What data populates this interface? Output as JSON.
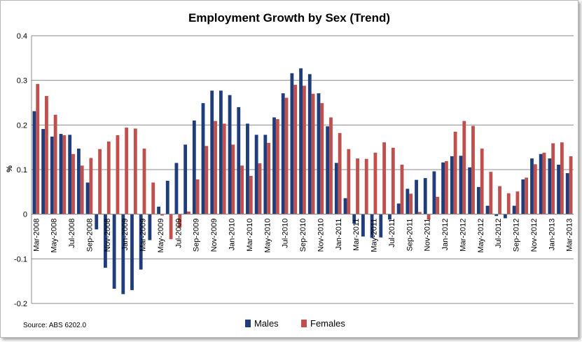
{
  "chart_data": {
    "type": "bar",
    "title": "Employment Growth by Sex (Trend)",
    "ylabel": "%",
    "xlabel": "",
    "ylim": [
      -0.2,
      0.4
    ],
    "yticks": [
      "0.4",
      "0.3",
      "0.2",
      "0.1",
      "0",
      "-0.1",
      "-0.2"
    ],
    "ytick_values": [
      0.4,
      0.3,
      0.2,
      0.1,
      0,
      -0.1,
      -0.2
    ],
    "grid": "horizontal",
    "legend_position": "bottom",
    "source": "Source: ABS 6202.0",
    "categories": [
      "Mar-2008",
      "Apr-2008",
      "May-2008",
      "Jun-2008",
      "Jul-2008",
      "Aug-2008",
      "Sep-2008",
      "Oct-2008",
      "Nov-2008",
      "Dec-2008",
      "Jan-2009",
      "Feb-2009",
      "Mar-2009",
      "Apr-2009",
      "May-2009",
      "Jun-2009",
      "Jul-2009",
      "Aug-2009",
      "Sep-2009",
      "Oct-2009",
      "Nov-2009",
      "Dec-2009",
      "Jan-2010",
      "Feb-2010",
      "Mar-2010",
      "Apr-2010",
      "May-2010",
      "Jun-2010",
      "Jul-2010",
      "Aug-2010",
      "Sep-2010",
      "Oct-2010",
      "Nov-2010",
      "Dec-2010",
      "Jan-2011",
      "Feb-2011",
      "Mar-2011",
      "Apr-2011",
      "May-2011",
      "Jun-2011",
      "Jul-2011",
      "Aug-2011",
      "Sep-2011",
      "Oct-2011",
      "Nov-2011",
      "Dec-2011",
      "Jan-2012",
      "Feb-2012",
      "Mar-2012",
      "Apr-2012",
      "May-2012",
      "Jun-2012",
      "Jul-2012",
      "Aug-2012",
      "Sep-2012",
      "Oct-2012",
      "Nov-2012",
      "Dec-2012",
      "Jan-2013",
      "Feb-2013",
      "Mar-2013"
    ],
    "tick_labels": [
      "Mar-2008",
      "May-2008",
      "Jul-2008",
      "Sep-2008",
      "Nov-2008",
      "Jan-2009",
      "Mar-2009",
      "May-2009",
      "Jul-2009",
      "Sep-2009",
      "Nov-2009",
      "Jan-2010",
      "Mar-2010",
      "May-2010",
      "Jul-2010",
      "Sep-2010",
      "Nov-2010",
      "Jan-2011",
      "Mar-2011",
      "May-2011",
      "Jul-2011",
      "Sep-2011",
      "Nov-2011",
      "Jan-2012",
      "Mar-2012",
      "May-2012",
      "Jul-2012",
      "Sep-2012",
      "Nov-2012",
      "Jan-2013",
      "Mar-2013"
    ],
    "series": [
      {
        "name": "Males",
        "color": "#1f3d7a",
        "values": [
          0.231,
          0.191,
          0.174,
          0.18,
          0.178,
          0.147,
          0.071,
          -0.034,
          -0.12,
          -0.167,
          -0.179,
          -0.17,
          -0.124,
          -0.058,
          0.017,
          0.075,
          0.115,
          0.156,
          0.21,
          0.249,
          0.277,
          0.277,
          0.267,
          0.24,
          0.203,
          0.178,
          0.178,
          0.217,
          0.271,
          0.316,
          0.327,
          0.314,
          0.271,
          0.197,
          0.115,
          0.036,
          -0.021,
          -0.05,
          -0.053,
          -0.052,
          -0.012,
          0.024,
          0.057,
          0.077,
          0.081,
          0.096,
          0.116,
          0.13,
          0.131,
          0.105,
          0.061,
          0.019,
          -0.004,
          -0.009,
          0.019,
          0.078,
          0.125,
          0.135,
          0.125,
          0.111,
          0.092
        ]
      },
      {
        "name": "Females",
        "color": "#c0504d",
        "values": [
          0.292,
          0.265,
          0.223,
          0.177,
          0.135,
          0.109,
          0.126,
          0.146,
          0.163,
          0.177,
          0.194,
          0.192,
          0.147,
          0.071,
          -0.003,
          -0.056,
          -0.03,
          0.006,
          0.078,
          0.153,
          0.209,
          0.203,
          0.156,
          0.109,
          0.086,
          0.114,
          0.16,
          0.213,
          0.261,
          0.29,
          0.288,
          0.27,
          0.249,
          0.217,
          0.182,
          0.146,
          0.125,
          0.124,
          0.138,
          0.161,
          0.149,
          0.111,
          0.046,
          0.005,
          -0.012,
          0.039,
          0.119,
          0.185,
          0.209,
          0.198,
          0.147,
          0.095,
          0.063,
          0.047,
          0.051,
          0.082,
          0.112,
          0.138,
          0.159,
          0.161,
          0.13
        ]
      }
    ]
  }
}
